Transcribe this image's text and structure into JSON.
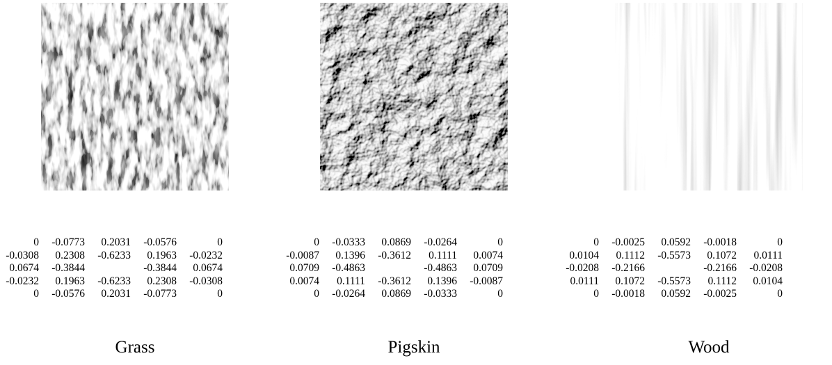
{
  "figure": {
    "panels": [
      {
        "caption": "Grass",
        "texture": "grass",
        "matrix": [
          [
            "0",
            "-0.0773",
            "0.2031",
            "-0.0576",
            "0"
          ],
          [
            "-0.0308",
            "0.2308",
            "-0.6233",
            "0.1963",
            "-0.0232"
          ],
          [
            "0.0674",
            "-0.3844",
            "",
            "-0.3844",
            "0.0674"
          ],
          [
            "-0.0232",
            "0.1963",
            "-0.6233",
            "0.2308",
            "-0.0308"
          ],
          [
            "0",
            "-0.0576",
            "0.2031",
            "-0.0773",
            "0"
          ]
        ]
      },
      {
        "caption": "Pigskin",
        "texture": "pigskin",
        "matrix": [
          [
            "0",
            "-0.0333",
            "0.0869",
            "-0.0264",
            "0"
          ],
          [
            "-0.0087",
            "0.1396",
            "-0.3612",
            "0.1111",
            "0.0074"
          ],
          [
            "0.0709",
            "-0.4863",
            "",
            "-0.4863",
            "0.0709"
          ],
          [
            "0.0074",
            "0.1111",
            "-0.3612",
            "0.1396",
            "-0.0087"
          ],
          [
            "0",
            "-0.0264",
            "0.0869",
            "-0.0333",
            "0"
          ]
        ]
      },
      {
        "caption": "Wood",
        "texture": "wood",
        "matrix": [
          [
            "0",
            "-0.0025",
            "0.0592",
            "-0.0018",
            "0"
          ],
          [
            "0.0104",
            "0.1112",
            "-0.5573",
            "0.1072",
            "0.0111"
          ],
          [
            "-0.0208",
            "-0.2166",
            "",
            "-0.2166",
            "-0.0208"
          ],
          [
            "0.0111",
            "0.1072",
            "-0.5573",
            "0.1112",
            "0.0104"
          ],
          [
            "0",
            "-0.0018",
            "0.0592",
            "-0.0025",
            "0"
          ]
        ]
      }
    ]
  }
}
